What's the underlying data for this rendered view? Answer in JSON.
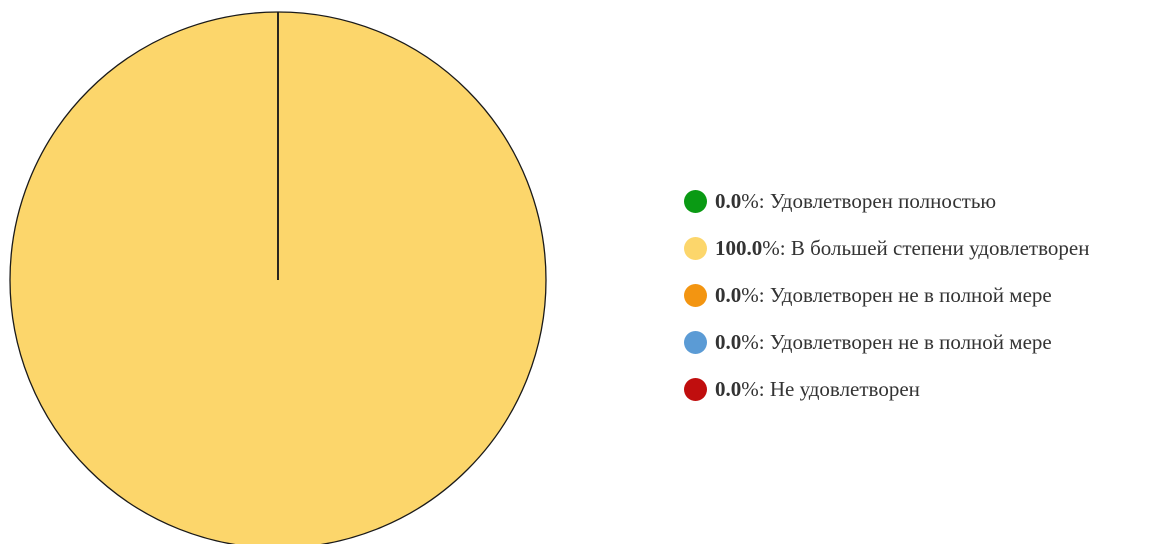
{
  "chart_data": {
    "type": "pie",
    "slices": [
      {
        "label": "Удовлетворен полностью",
        "value": 0.0,
        "display_value": "0.0",
        "color": "#0a9a14"
      },
      {
        "label": "В большей степени удовлетворен",
        "value": 100.0,
        "display_value": "100.0",
        "color": "#fcd66b"
      },
      {
        "label": "Удовлетворен не в полной мере",
        "value": 0.0,
        "display_value": "0.0",
        "color": "#f39511"
      },
      {
        "label": "Удовлетворен не в полной мере",
        "value": 0.0,
        "display_value": "0.0",
        "color": "#5b9bd5"
      },
      {
        "label": "Не удовлетворен",
        "value": 0.0,
        "display_value": "0.0",
        "color": "#c00e0e"
      }
    ],
    "legend": {
      "placement": "right",
      "separator": "%: "
    },
    "outline_color": "#1a1a1a"
  }
}
